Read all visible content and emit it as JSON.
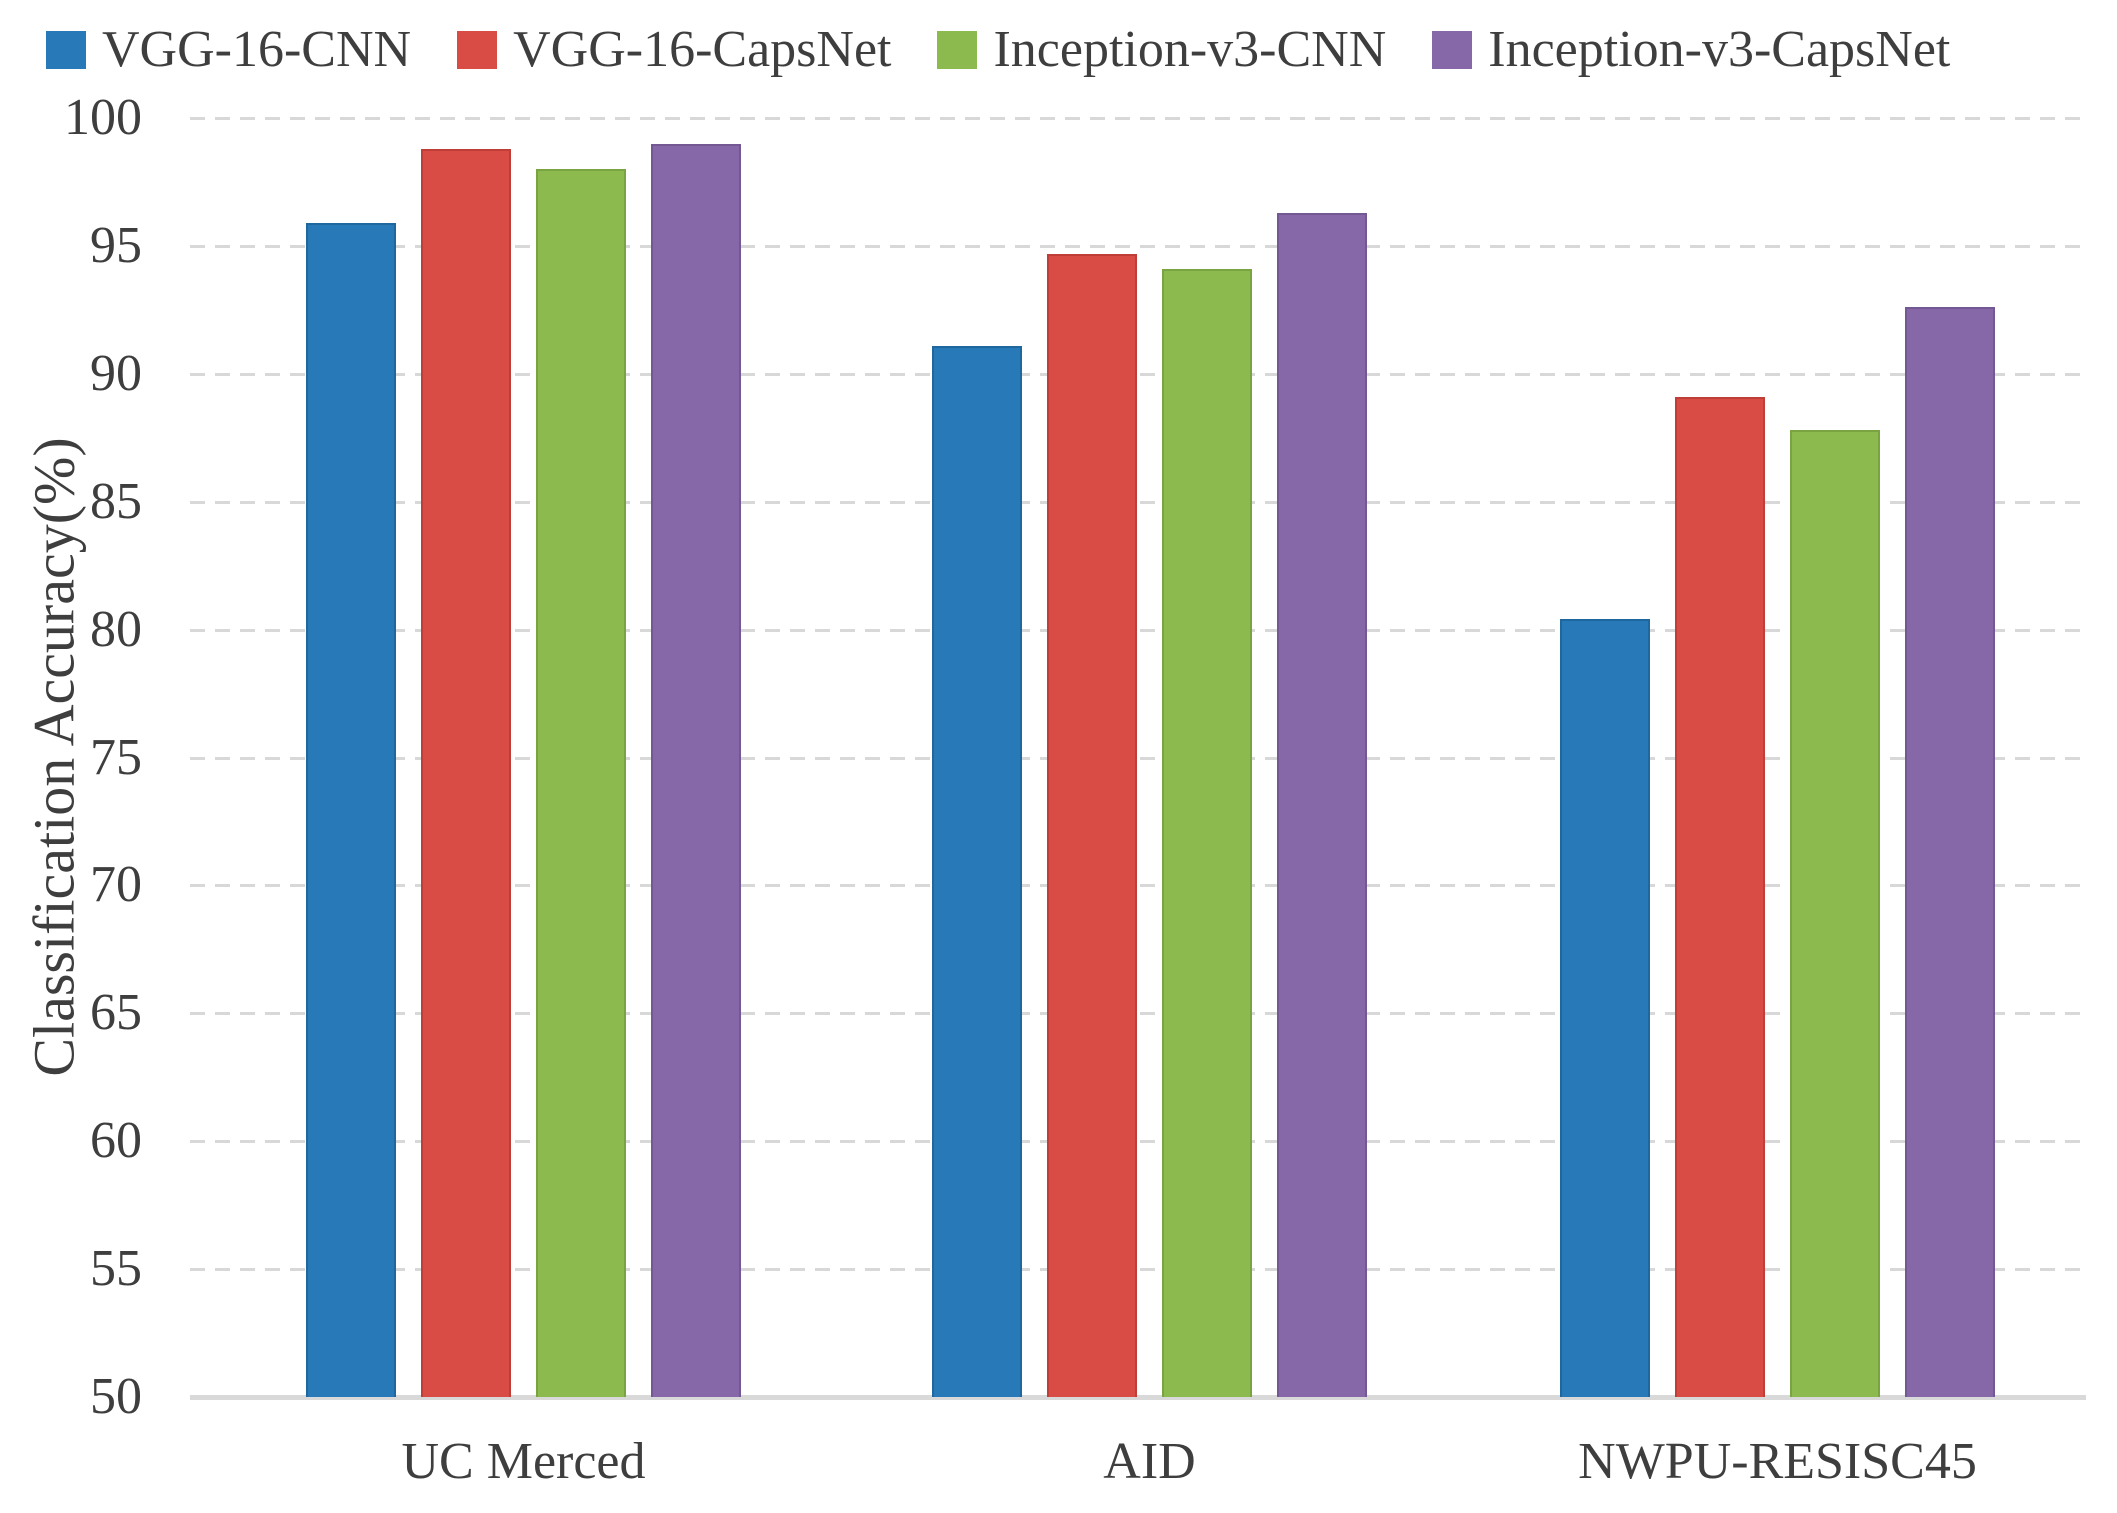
{
  "chart_data": {
    "type": "bar",
    "title": "",
    "categories": [
      "UC Merced",
      "AID",
      "NWPU-RESISC45"
    ],
    "series": [
      {
        "name": "VGG-16-CNN",
        "color": "#2779b8",
        "edge_color": "#1e689f",
        "values": [
          95.9,
          91.1,
          80.4
        ]
      },
      {
        "name": "VGG-16-CapsNet",
        "color": "#d84c45",
        "edge_color": "#c03e38",
        "values": [
          98.8,
          94.7,
          89.1
        ]
      },
      {
        "name": "Inception-v3-CNN",
        "color": "#8cba4f",
        "edge_color": "#79a441",
        "values": [
          98.0,
          94.1,
          87.8
        ]
      },
      {
        "name": "Inception-v3-CapsNet",
        "color": "#8668a8",
        "edge_color": "#735893",
        "values": [
          99.0,
          96.3,
          92.6
        ]
      }
    ],
    "xlabel": "",
    "ylabel": "Classification Accuracy(%)",
    "ylim": [
      50,
      100
    ],
    "y_ticks": [
      100,
      95,
      90,
      85,
      80,
      75,
      70,
      65,
      60,
      55,
      50
    ],
    "grid": "horizontal-dashed",
    "legend_position": "top-left"
  },
  "legend": {
    "items": [
      {
        "label": "VGG-16-CNN",
        "color": "#2779b8"
      },
      {
        "label": "VGG-16-CapsNet",
        "color": "#d84c45"
      },
      {
        "label": "Inception-v3-CNN",
        "color": "#8cba4f"
      },
      {
        "label": "Inception-v3-CapsNet",
        "color": "#8668a8"
      }
    ]
  },
  "colors": {
    "background": "#ffffff",
    "gridline": "#d8d8d8",
    "axis_line": "#d9d9d9",
    "text": "#3e3e3e"
  }
}
